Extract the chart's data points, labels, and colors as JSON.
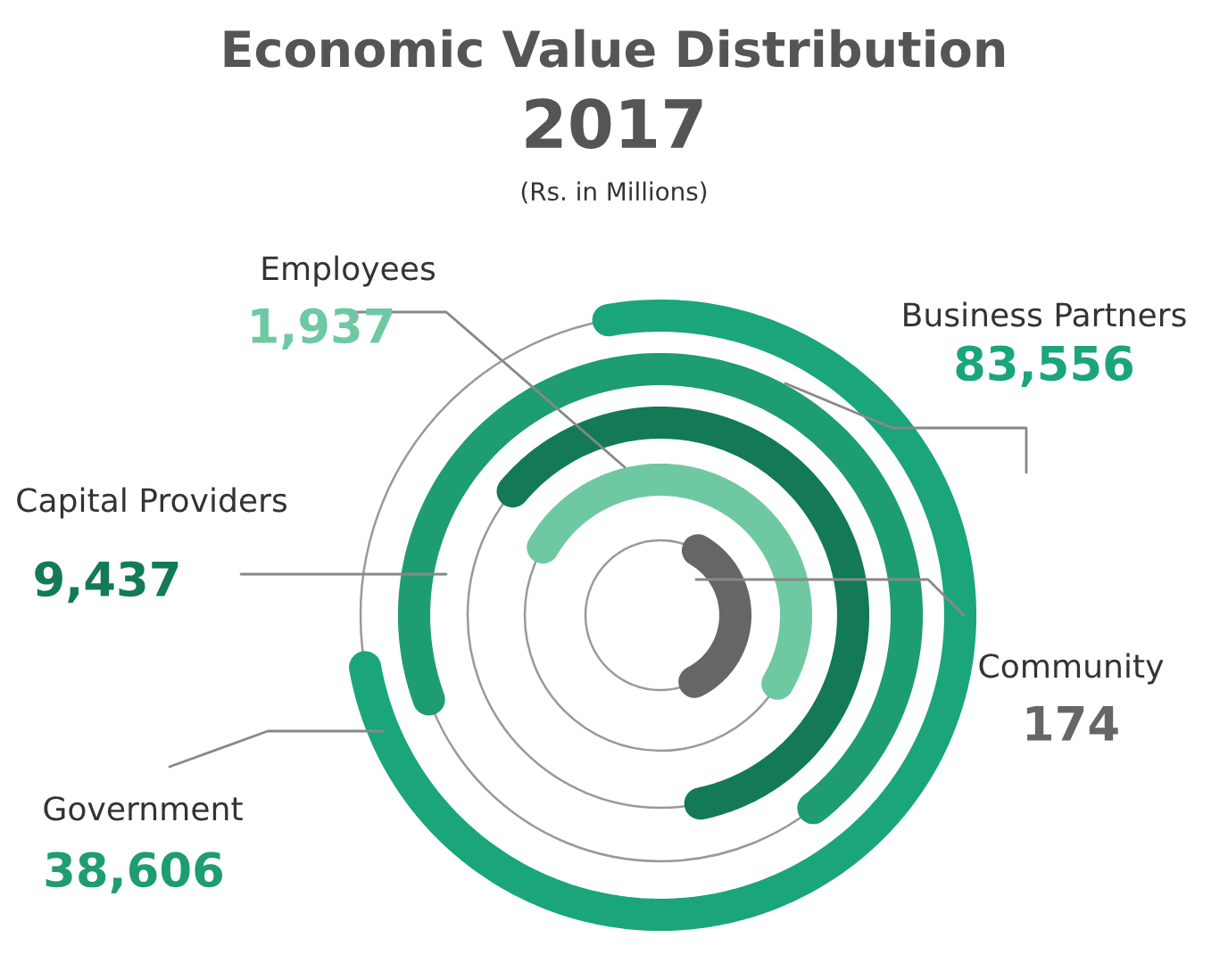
{
  "chart_data": {
    "type": "other",
    "title": "Economic Value Distribution",
    "subtitle": "2017",
    "annotations": [
      "(Rs. in Millions)"
    ],
    "categories": [
      "Business Partners",
      "Government",
      "Capital Providers",
      "Employees",
      "Community"
    ],
    "values": [
      83556,
      38606,
      9437,
      1937,
      174
    ],
    "colors": [
      "#1aa57a",
      "#1e9c72",
      "#137a55",
      "#6ec9a3",
      "#666666"
    ],
    "value_labels": [
      "83,556",
      "38,606",
      "9,437",
      "1,937",
      "174"
    ]
  }
}
